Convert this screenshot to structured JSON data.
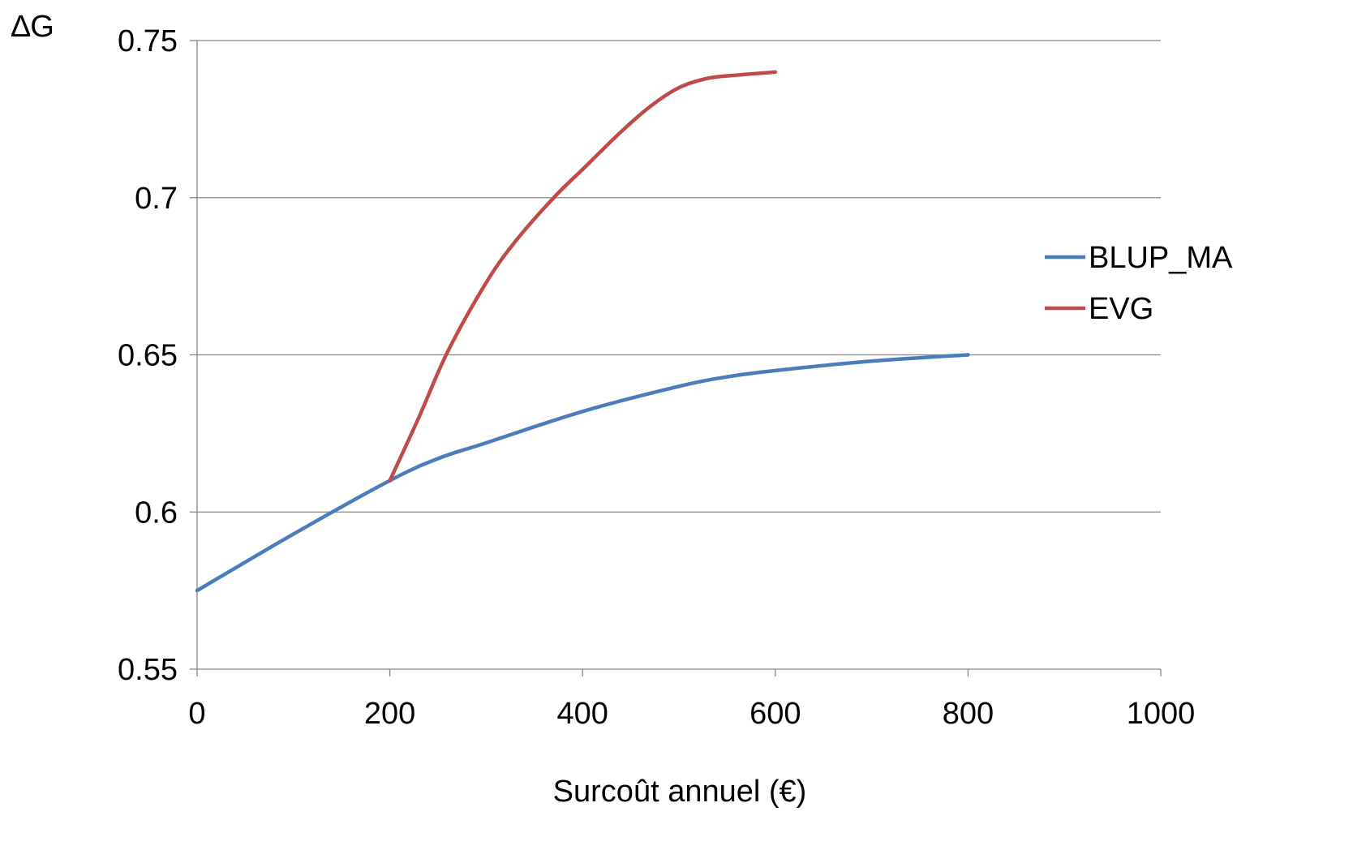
{
  "chart_data": {
    "type": "line",
    "title": "",
    "xlabel": "Surcoût annuel (€)",
    "ylabel": "∆G",
    "xlim": [
      0,
      1000
    ],
    "ylim": [
      0.55,
      0.75
    ],
    "x_ticks": [
      "0",
      "200",
      "400",
      "600",
      "800",
      "1000"
    ],
    "y_ticks": [
      "0.55",
      "0.6",
      "0.65",
      "0.7",
      "0.75"
    ],
    "grid": "horizontal major gridlines",
    "legend_position": "right",
    "series": [
      {
        "name": "BLUP_MA",
        "color": "#4a7ebb",
        "x": [
          0,
          100,
          200,
          250,
          300,
          400,
          500,
          550,
          600,
          700,
          800
        ],
        "y": [
          0.575,
          0.593,
          0.61,
          0.617,
          0.622,
          0.632,
          0.64,
          0.643,
          0.645,
          0.648,
          0.65
        ]
      },
      {
        "name": "EVG",
        "color": "#be4b48",
        "x": [
          200,
          230,
          260,
          300,
          330,
          370,
          400,
          440,
          470,
          500,
          530,
          560,
          600
        ],
        "y": [
          0.61,
          0.63,
          0.651,
          0.673,
          0.686,
          0.7,
          0.709,
          0.721,
          0.729,
          0.735,
          0.738,
          0.739,
          0.74
        ]
      }
    ]
  }
}
